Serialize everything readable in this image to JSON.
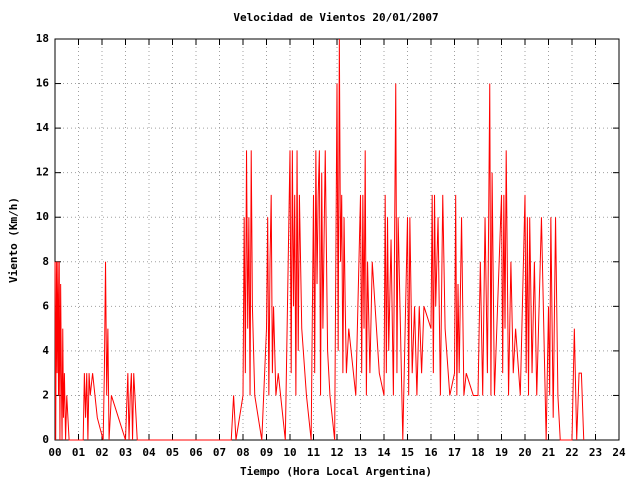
{
  "chart_data": {
    "type": "line",
    "title": "Velocidad de Vientos 20/01/2007",
    "x_label": "Tiempo (Hora Local Argentina)",
    "y_label": "Viento (Km/h)",
    "color": "#ff0000",
    "grid": true,
    "xlim": [
      0,
      24
    ],
    "ylim": [
      0,
      18
    ],
    "xticks": [
      {
        "value": 0,
        "label": "00"
      },
      {
        "value": 1,
        "label": "01"
      },
      {
        "value": 2,
        "label": "02"
      },
      {
        "value": 3,
        "label": "03"
      },
      {
        "value": 4,
        "label": "04"
      },
      {
        "value": 5,
        "label": "05"
      },
      {
        "value": 6,
        "label": "06"
      },
      {
        "value": 7,
        "label": "07"
      },
      {
        "value": 8,
        "label": "08"
      },
      {
        "value": 9,
        "label": "09"
      },
      10,
      11,
      12,
      13,
      14,
      15,
      16,
      17,
      18,
      19,
      20,
      21,
      22,
      23,
      24
    ],
    "yticks": [
      0,
      2,
      4,
      6,
      8,
      10,
      12,
      14,
      16,
      18
    ],
    "x": [
      0.0,
      0.03,
      0.06,
      0.09,
      0.12,
      0.15,
      0.18,
      0.21,
      0.24,
      0.27,
      0.3,
      0.33,
      0.36,
      0.4,
      0.45,
      0.5,
      0.6,
      1.2,
      1.25,
      1.3,
      1.35,
      1.4,
      1.45,
      1.5,
      1.6,
      1.8,
      2.05,
      2.1,
      2.15,
      2.2,
      2.25,
      2.3,
      2.4,
      3.0,
      3.1,
      3.15,
      3.2,
      3.25,
      3.3,
      3.35,
      3.4,
      3.5,
      7.5,
      7.6,
      7.7,
      8.0,
      8.05,
      8.1,
      8.15,
      8.2,
      8.25,
      8.3,
      8.35,
      8.4,
      8.5,
      8.8,
      9.0,
      9.05,
      9.1,
      9.15,
      9.2,
      9.25,
      9.3,
      9.4,
      9.5,
      9.8,
      10.0,
      10.05,
      10.1,
      10.15,
      10.2,
      10.25,
      10.3,
      10.35,
      10.4,
      10.5,
      10.7,
      10.9,
      11.0,
      11.05,
      11.1,
      11.15,
      11.2,
      11.25,
      11.3,
      11.35,
      11.4,
      11.5,
      11.6,
      11.7,
      11.9,
      12.0,
      12.05,
      12.1,
      12.15,
      12.2,
      12.25,
      12.3,
      12.35,
      12.4,
      12.5,
      12.8,
      13.0,
      13.05,
      13.1,
      13.15,
      13.2,
      13.25,
      13.3,
      13.4,
      13.5,
      13.8,
      14.0,
      14.05,
      14.1,
      14.15,
      14.2,
      14.3,
      14.4,
      14.5,
      14.55,
      14.6,
      14.8,
      15.0,
      15.05,
      15.1,
      15.2,
      15.3,
      15.4,
      15.5,
      15.6,
      15.7,
      16.0,
      16.05,
      16.1,
      16.15,
      16.2,
      16.3,
      16.4,
      16.5,
      16.6,
      16.8,
      17.0,
      17.05,
      17.1,
      17.15,
      17.2,
      17.3,
      17.4,
      17.5,
      17.8,
      18.0,
      18.1,
      18.2,
      18.3,
      18.4,
      18.5,
      18.55,
      18.6,
      18.7,
      19.0,
      19.05,
      19.1,
      19.15,
      19.2,
      19.3,
      19.4,
      19.5,
      19.6,
      19.8,
      20.0,
      20.05,
      20.1,
      20.15,
      20.2,
      20.3,
      20.4,
      20.5,
      20.7,
      20.9,
      21.0,
      21.05,
      21.1,
      21.2,
      21.3,
      21.4,
      21.5,
      22.0,
      22.1,
      22.2,
      22.3,
      22.4,
      22.5
    ],
    "values": [
      8,
      0,
      8,
      3,
      8,
      2,
      8,
      0,
      7,
      3,
      0,
      5,
      1,
      3,
      0,
      2,
      0,
      0,
      3,
      1,
      3,
      0,
      3,
      2,
      3,
      1,
      0,
      3,
      8,
      2,
      5,
      0,
      2,
      0,
      3,
      0,
      2,
      3,
      0,
      3,
      2,
      0,
      0,
      2,
      0,
      2,
      10,
      3,
      13,
      5,
      10,
      2,
      13,
      6,
      2,
      0,
      5,
      10,
      2,
      8,
      11,
      3,
      6,
      2,
      3,
      0,
      13,
      3,
      13,
      6,
      11,
      2,
      13,
      4,
      11,
      5,
      2,
      0,
      11,
      3,
      13,
      7,
      11,
      13,
      2,
      12,
      5,
      13,
      4,
      2,
      0,
      16,
      4,
      18,
      8,
      11,
      3,
      10,
      6,
      3,
      5,
      2,
      11,
      3,
      11,
      5,
      13,
      2,
      8,
      3,
      8,
      3,
      2,
      11,
      3,
      10,
      4,
      9,
      2,
      16,
      3,
      10,
      0,
      10,
      2,
      10,
      3,
      6,
      2,
      6,
      3,
      6,
      5,
      11,
      3,
      11,
      6,
      10,
      2,
      11,
      5,
      2,
      3,
      11,
      2,
      7,
      3,
      10,
      2,
      3,
      2,
      2,
      8,
      2,
      10,
      3,
      16,
      2,
      12,
      2,
      11,
      3,
      11,
      5,
      13,
      2,
      8,
      3,
      5,
      2,
      11,
      3,
      10,
      2,
      10,
      3,
      8,
      2,
      10,
      0,
      6,
      2,
      10,
      1,
      10,
      2,
      0,
      0,
      5,
      0,
      3,
      3,
      0
    ]
  }
}
